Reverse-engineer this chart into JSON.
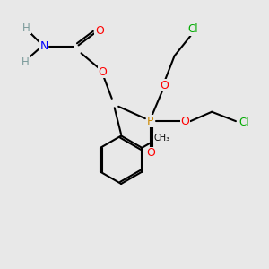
{
  "bg_color": "#e8e8e8",
  "atom_colors": {
    "C": "#000000",
    "H": "#7a9a9a",
    "N": "#0000ff",
    "O": "#ff0000",
    "P": "#cc8800",
    "Cl": "#00aa00"
  },
  "bond_color": "#000000",
  "figsize": [
    3.0,
    3.0
  ],
  "dpi": 100
}
